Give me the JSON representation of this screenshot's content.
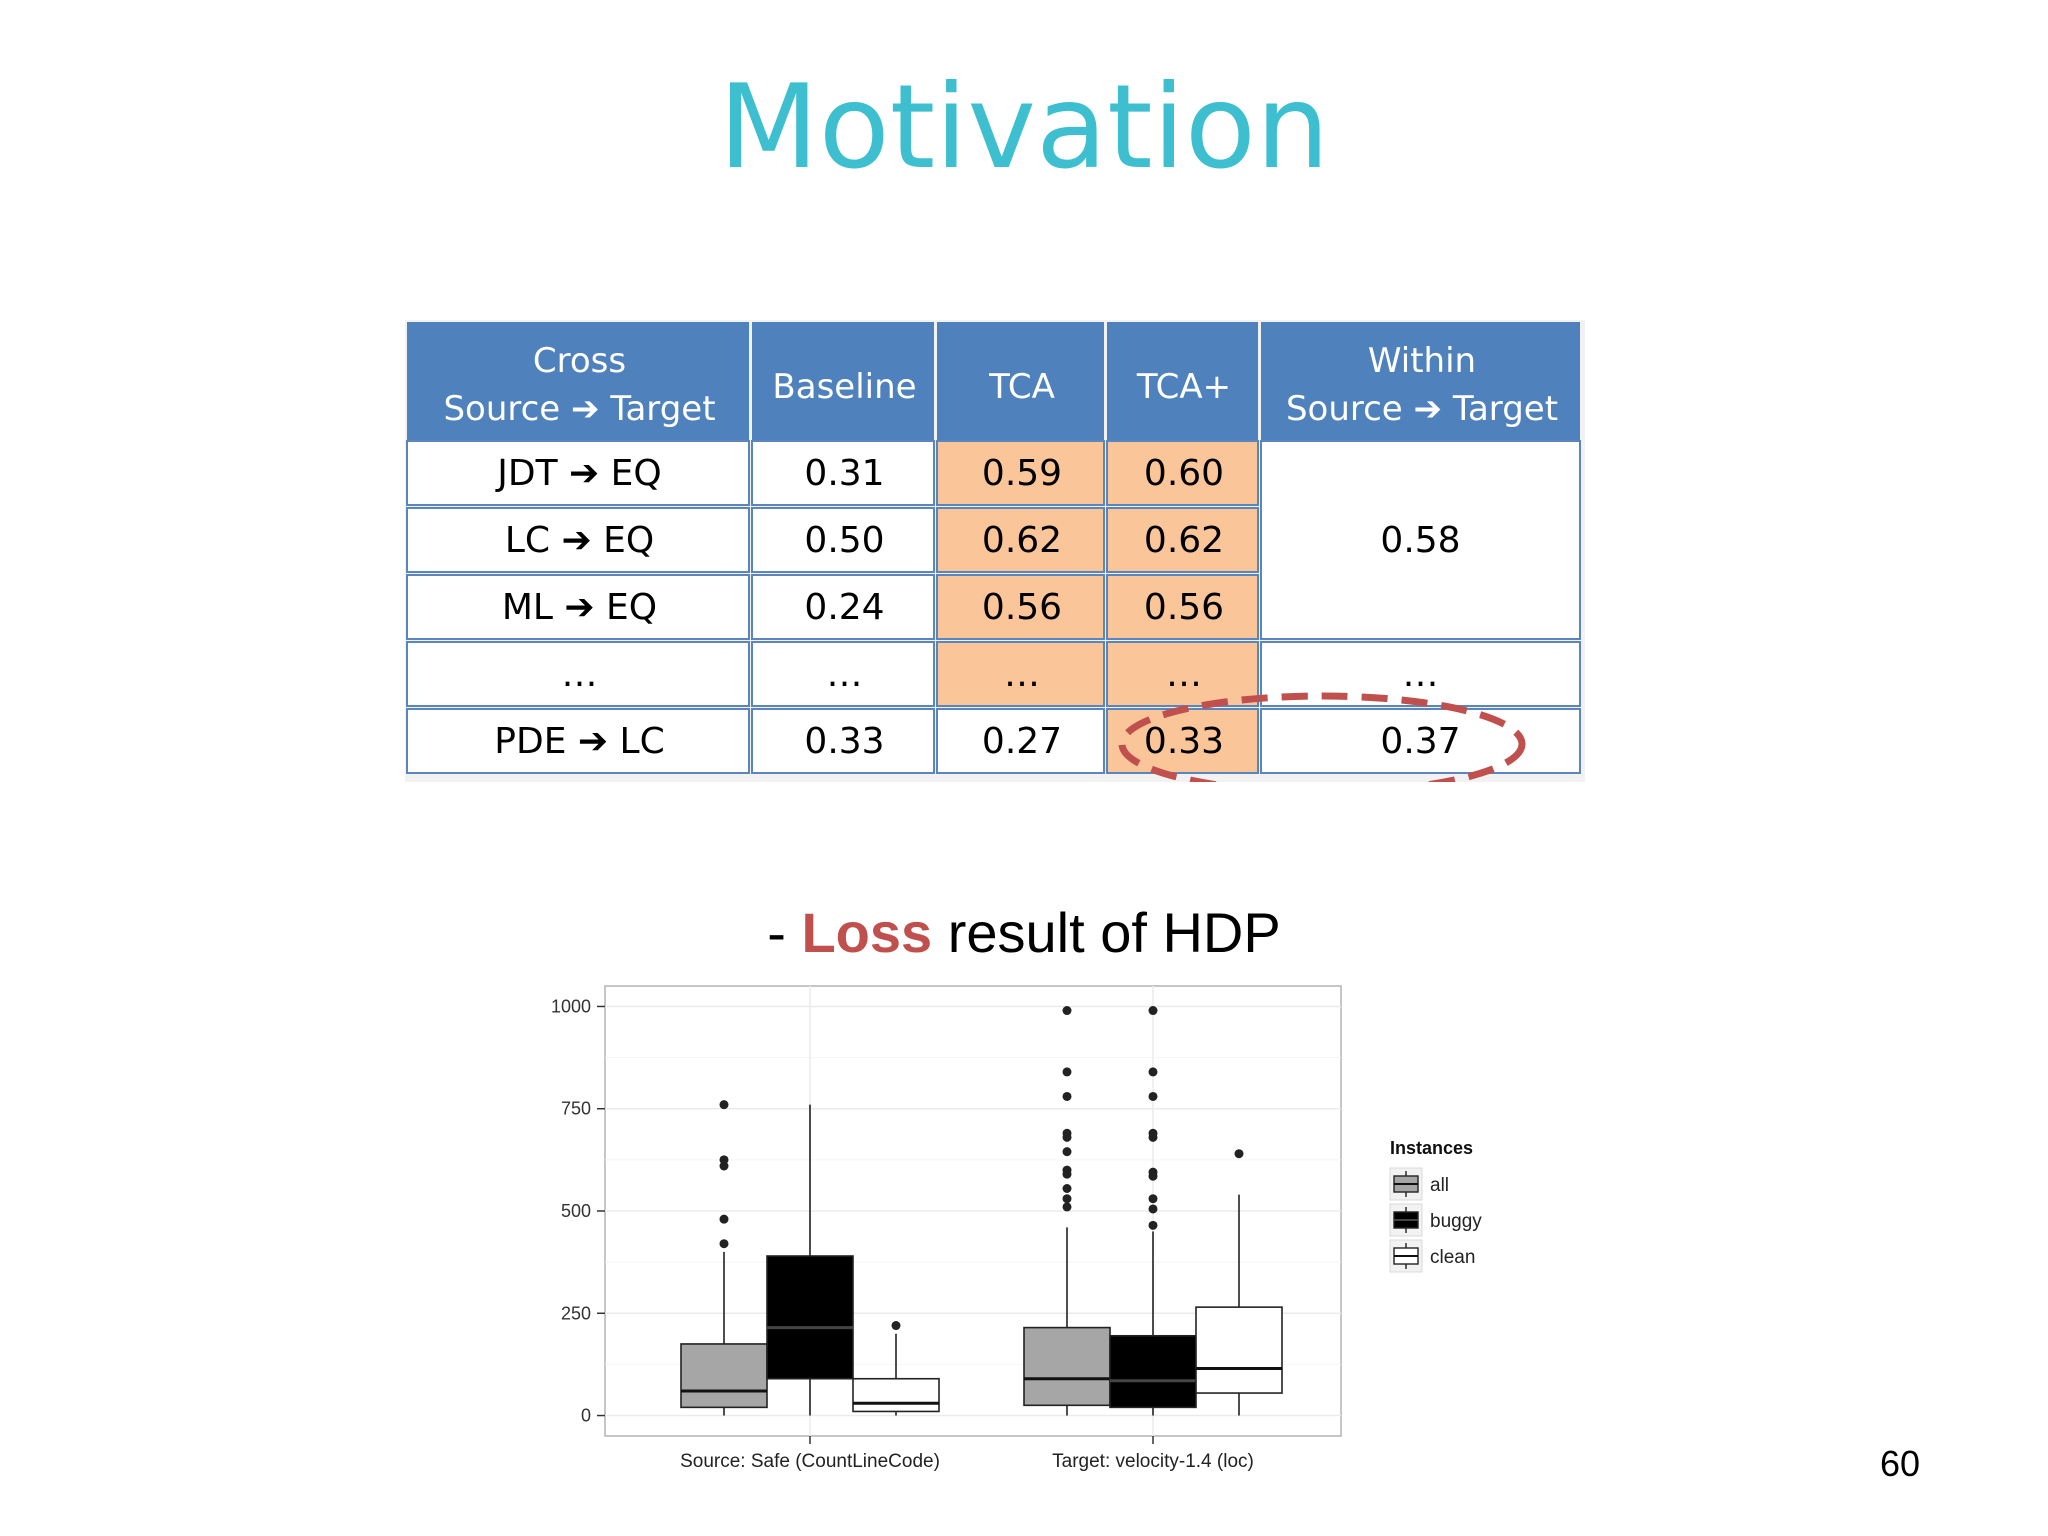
{
  "slide": {
    "title": "Motivation",
    "subtitle_prefix": "- ",
    "subtitle_highlight": "Loss",
    "subtitle_suffix": " result of HDP",
    "page_number": "60"
  },
  "table": {
    "headers": [
      {
        "lines": [
          "Cross",
          "Source ➔ Target"
        ]
      },
      {
        "lines": [
          "Baseline"
        ]
      },
      {
        "lines": [
          "TCA"
        ]
      },
      {
        "lines": [
          "TCA+"
        ]
      },
      {
        "lines": [
          "Within",
          "Source ➔ Target"
        ]
      }
    ],
    "rows": [
      {
        "pair": "JDT ➔ EQ",
        "baseline": "0.31",
        "tca": "0.59",
        "tca_plus": "0.60"
      },
      {
        "pair": "LC ➔ EQ",
        "baseline": "0.50",
        "tca": "0.62",
        "tca_plus": "0.62"
      },
      {
        "pair": "ML ➔ EQ",
        "baseline": "0.24",
        "tca": "0.56",
        "tca_plus": "0.56"
      },
      {
        "pair": "…",
        "baseline": "…",
        "tca": "…",
        "tca_plus": "…"
      },
      {
        "pair": "PDE ➔ LC",
        "baseline": "0.33",
        "tca": "0.27",
        "tca_plus": "0.33"
      }
    ],
    "within_values": [
      "0.58",
      "…",
      "0.37"
    ],
    "colors": {
      "header_bg": "#4f81bd",
      "header_text": "#ffffff",
      "highlight_bg": "#fbc59a",
      "border": "#5b86bd",
      "ellipse": "#c0504d"
    }
  },
  "chart_data": {
    "type": "box",
    "categories": [
      "Source: Safe (CountLineCode)",
      "Target: velocity-1.4 (loc)"
    ],
    "y_ticks": [
      "0",
      "250",
      "500",
      "750",
      "1000"
    ],
    "ylim": [
      -50,
      1050
    ],
    "legend": {
      "title": "Instances",
      "entries": [
        "all",
        "buggy",
        "clean"
      ]
    },
    "series": [
      {
        "name": "all",
        "fill": "#a6a6a6",
        "boxes": [
          {
            "whisker_low": 0,
            "q1": 20,
            "median": 60,
            "q3": 175,
            "whisker_high": 400,
            "outliers": [
              420,
              480,
              610,
              625,
              760
            ]
          },
          {
            "whisker_low": 0,
            "q1": 25,
            "median": 90,
            "q3": 215,
            "whisker_high": 460,
            "outliers": [
              510,
              530,
              555,
              590,
              600,
              645,
              680,
              690,
              780,
              840,
              990
            ]
          }
        ]
      },
      {
        "name": "buggy",
        "fill": "#000000",
        "boxes": [
          {
            "whisker_low": 0,
            "q1": 90,
            "median": 215,
            "q3": 390,
            "whisker_high": 760,
            "outliers": []
          },
          {
            "whisker_low": 0,
            "q1": 20,
            "median": 85,
            "q3": 195,
            "whisker_high": 450,
            "outliers": [
              465,
              505,
              530,
              585,
              595,
              680,
              690,
              780,
              840,
              990
            ]
          }
        ]
      },
      {
        "name": "clean",
        "fill": "#ffffff",
        "boxes": [
          {
            "whisker_low": 0,
            "q1": 10,
            "median": 30,
            "q3": 90,
            "whisker_high": 200,
            "outliers": [
              220
            ]
          },
          {
            "whisker_low": 0,
            "q1": 55,
            "median": 115,
            "q3": 265,
            "whisker_high": 540,
            "outliers": [
              640
            ]
          }
        ]
      }
    ]
  }
}
